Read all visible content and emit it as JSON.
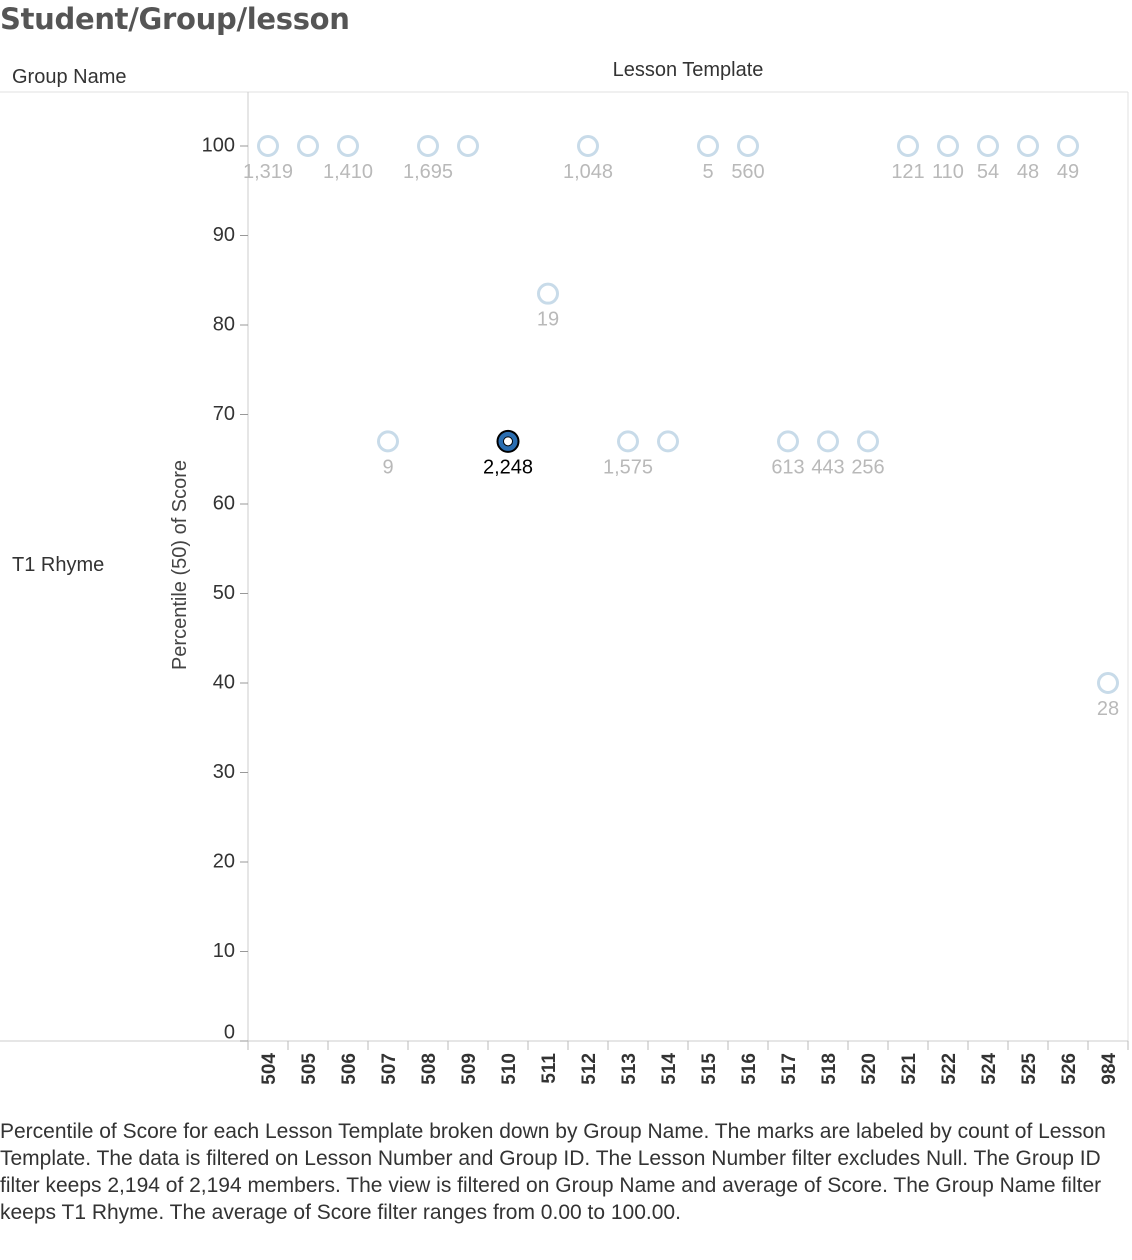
{
  "title": "Student/Group/lesson",
  "headers": {
    "group_name": "Group Name",
    "lesson_template": "Lesson Template"
  },
  "row_label": "T1 Rhyme",
  "caption": "Percentile of Score for each Lesson Template broken down by Group Name.  The marks are labeled by count of Lesson Template. The data is filtered on Lesson Number and Group ID. The Lesson Number filter excludes Null. The Group ID filter keeps 2,194 of 2,194 members. The view is filtered on Group Name and average of Score. The Group Name filter keeps T1 Rhyme. The average of Score filter ranges from 0.00 to 100.00.",
  "colors": {
    "mark": "#c8dbe9",
    "highlight_fill": "#2a6db0",
    "label": "#b9b9b9",
    "axis": "#cccccc"
  },
  "chart_data": {
    "type": "scatter",
    "xlabel": "Lesson Template",
    "ylabel": "Percentile (50) of Score",
    "ylim": [
      0,
      100
    ],
    "yticks": [
      0,
      10,
      20,
      30,
      40,
      50,
      60,
      70,
      80,
      90,
      100
    ],
    "categories": [
      "504",
      "505",
      "506",
      "507",
      "508",
      "509",
      "510",
      "511",
      "512",
      "513",
      "514",
      "515",
      "516",
      "517",
      "518",
      "520",
      "521",
      "522",
      "524",
      "525",
      "526",
      "984"
    ],
    "points": [
      {
        "x": "504",
        "y": 100,
        "label": "1,319"
      },
      {
        "x": "505",
        "y": 100,
        "label": ""
      },
      {
        "x": "506",
        "y": 100,
        "label": "1,410"
      },
      {
        "x": "507",
        "y": 67,
        "label": "9"
      },
      {
        "x": "508",
        "y": 100,
        "label": "1,695"
      },
      {
        "x": "509",
        "y": 100,
        "label": ""
      },
      {
        "x": "510",
        "y": 67,
        "label": "2,248",
        "highlight": true
      },
      {
        "x": "511",
        "y": 83.5,
        "label": "19"
      },
      {
        "x": "512",
        "y": 100,
        "label": "1,048"
      },
      {
        "x": "513",
        "y": 67,
        "label": "1,575"
      },
      {
        "x": "514",
        "y": 67,
        "label": ""
      },
      {
        "x": "515",
        "y": 100,
        "label": "5"
      },
      {
        "x": "516",
        "y": 100,
        "label": "560"
      },
      {
        "x": "517",
        "y": 67,
        "label": "613"
      },
      {
        "x": "518",
        "y": 67,
        "label": "443"
      },
      {
        "x": "520",
        "y": 67,
        "label": "256"
      },
      {
        "x": "521",
        "y": 100,
        "label": "121"
      },
      {
        "x": "522",
        "y": 100,
        "label": "110"
      },
      {
        "x": "524",
        "y": 100,
        "label": "54"
      },
      {
        "x": "525",
        "y": 100,
        "label": "48"
      },
      {
        "x": "526",
        "y": 100,
        "label": "49"
      },
      {
        "x": "984",
        "y": 40,
        "label": "28"
      }
    ]
  }
}
